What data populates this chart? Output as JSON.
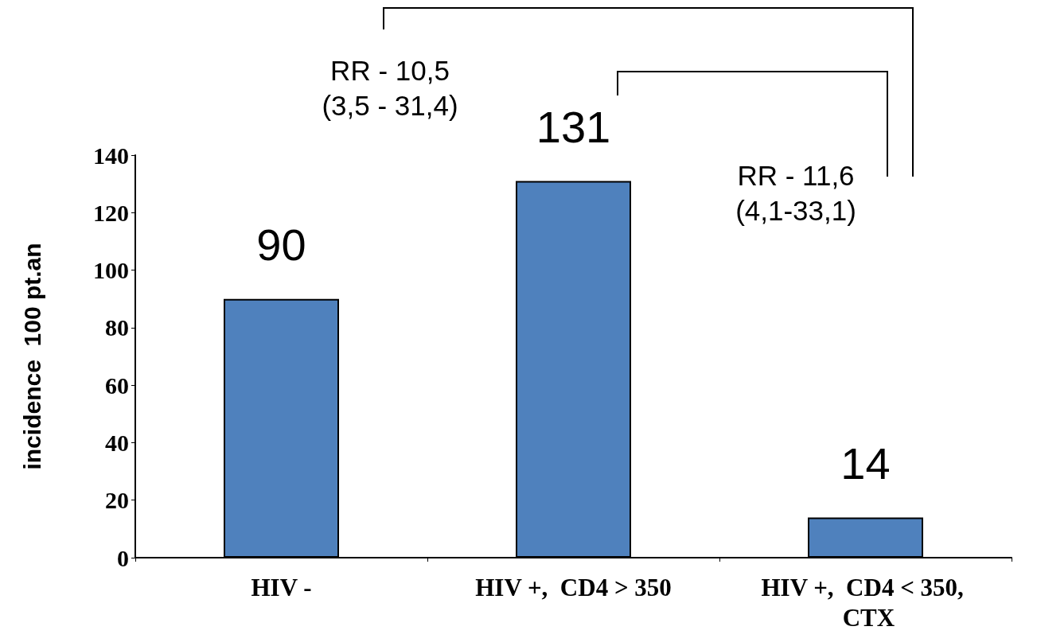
{
  "chart_data": {
    "type": "bar",
    "ylabel": "incidence  100 pt.an",
    "categories": [
      "HIV -",
      "HIV +,  CD4 > 350",
      "HIV +,  CD4 < 350,  CTX"
    ],
    "values": [
      90,
      131,
      14
    ],
    "color": "#4f81bd",
    "ylim": [
      0,
      140
    ],
    "yticks": [
      0,
      20,
      40,
      60,
      80,
      100,
      120,
      140
    ],
    "data_labels": true,
    "annotations": [
      "RR - 10,5\n(3,5 - 31,4)",
      "RR - 11,6\n(4,1-33,1)"
    ],
    "grid": false
  }
}
